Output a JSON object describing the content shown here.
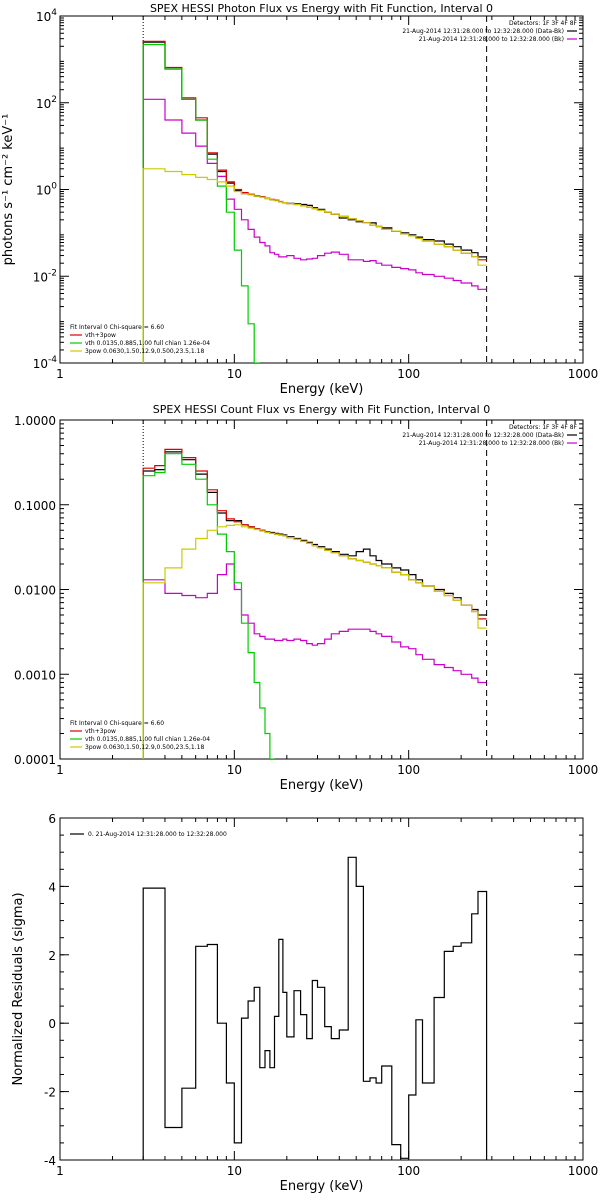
{
  "chart_data": [
    {
      "type": "line",
      "title": "SPEX HESSI Photon Flux vs Energy with Fit Function, Interval 0",
      "xlabel": "Energy (keV)",
      "ylabel": "photons s⁻¹ cm⁻² keV⁻¹",
      "xscale": "log",
      "yscale": "log",
      "xlim": [
        1,
        1000
      ],
      "ylim": [
        0.0001,
        10000
      ],
      "xticks": [
        1,
        10,
        100,
        1000
      ],
      "xticklabels": [
        "1",
        "10",
        "100",
        "1000"
      ],
      "yticks": [
        0.0001,
        0.01,
        1,
        100,
        10000
      ],
      "yticklabels": [
        {
          "base": "10",
          "exp": "-4"
        },
        {
          "base": "10",
          "exp": "-2"
        },
        {
          "base": "10",
          "exp": "0"
        },
        {
          "base": "10",
          "exp": "2"
        },
        {
          "base": "10",
          "exp": "4"
        }
      ],
      "vlines": [
        {
          "x": 3,
          "style": "dotted"
        },
        {
          "x": 280,
          "style": "dashed"
        }
      ],
      "legend_top_right": {
        "header": "Detectors: 1F 3F 4F 8F",
        "entries": [
          {
            "label": "21-Aug-2014 12:31:28.000 to 12:32:28.000 (Data-Bk)",
            "color": "#000000"
          },
          {
            "label": "21-Aug-2014 12:31:28.000 to 12:32:28.000 (Bk)",
            "color": "#cc00cc"
          }
        ]
      },
      "legend_bottom_left": {
        "header": "Fit Interval 0   Chi-square = 6.60",
        "entries": [
          {
            "label": "vth+3pow",
            "color": "#dd0000"
          },
          {
            "label": "vth 0.0135,0.885,1.00  full chian 1.26e-04",
            "color": "#00cc00"
          },
          {
            "label": "3pow 0.0630,1.50,12.9,0.500,23.5,1.18",
            "color": "#cccc00"
          }
        ]
      },
      "bin_edges": [
        3,
        3.5,
        4,
        5,
        6,
        7,
        8,
        9,
        10,
        11,
        12,
        13,
        14,
        15,
        16,
        17,
        18,
        19,
        20,
        22,
        24,
        26,
        28,
        30,
        33,
        36,
        40,
        45,
        50,
        55,
        60,
        65,
        70,
        80,
        90,
        100,
        110,
        120,
        140,
        160,
        180,
        200,
        230,
        250,
        280
      ],
      "series": [
        {
          "name": "Data-Bk",
          "color": "#000000",
          "values": [
            2500,
            2500,
            600,
            120,
            40,
            6.5,
            2.6,
            1.4,
            0.95,
            0.8,
            0.75,
            0.7,
            0.68,
            0.62,
            0.58,
            0.56,
            0.52,
            0.5,
            0.48,
            0.47,
            0.45,
            0.43,
            0.38,
            0.35,
            0.3,
            0.27,
            0.22,
            0.2,
            0.18,
            0.17,
            0.17,
            0.14,
            0.13,
            0.11,
            0.1,
            0.09,
            0.08,
            0.07,
            0.065,
            0.055,
            0.048,
            0.04,
            0.035,
            0.028
          ]
        },
        {
          "name": "Bk",
          "color": "#cc00cc",
          "values": [
            120,
            120,
            40,
            20,
            10,
            4,
            2,
            0.6,
            0.35,
            0.2,
            0.12,
            0.08,
            0.06,
            0.05,
            0.035,
            0.032,
            0.028,
            0.028,
            0.03,
            0.026,
            0.024,
            0.025,
            0.026,
            0.03,
            0.034,
            0.036,
            0.032,
            0.024,
            0.024,
            0.022,
            0.023,
            0.02,
            0.018,
            0.016,
            0.015,
            0.014,
            0.012,
            0.011,
            0.01,
            0.009,
            0.008,
            0.007,
            0.006,
            0.005
          ]
        },
        {
          "name": "vth+3pow",
          "color": "#dd0000",
          "values": [
            2600,
            2600,
            650,
            130,
            45,
            7,
            2.8,
            1.5,
            1.0,
            0.85,
            0.78,
            0.72,
            0.68,
            0.63,
            0.59,
            0.56,
            0.53,
            0.5,
            0.47,
            0.45,
            0.42,
            0.39,
            0.36,
            0.33,
            0.3,
            0.27,
            0.24,
            0.21,
            0.19,
            0.17,
            0.15,
            0.14,
            0.12,
            0.11,
            0.095,
            0.085,
            0.075,
            0.065,
            0.055,
            0.048,
            0.04,
            0.034,
            0.028,
            0.024
          ]
        },
        {
          "name": "vth",
          "color": "#00cc00",
          "values": [
            2200,
            2200,
            600,
            120,
            40,
            5,
            1.2,
            0.3,
            0.04,
            0.006,
            0.0008,
            0.0001
          ]
        },
        {
          "name": "3pow",
          "color": "#cccc00",
          "values": [
            3,
            3,
            2.6,
            2.2,
            1.9,
            1.7,
            1.5,
            1.2,
            0.9,
            0.8,
            0.75,
            0.7,
            0.66,
            0.62,
            0.58,
            0.55,
            0.52,
            0.5,
            0.47,
            0.45,
            0.42,
            0.39,
            0.36,
            0.33,
            0.3,
            0.27,
            0.24,
            0.21,
            0.19,
            0.17,
            0.15,
            0.14,
            0.12,
            0.11,
            0.095,
            0.085,
            0.075,
            0.065,
            0.055,
            0.048,
            0.04,
            0.034,
            0.028,
            0.018
          ]
        }
      ]
    },
    {
      "type": "line",
      "title": "SPEX HESSI Count Flux vs Energy with Fit Function, Interval 0",
      "xlabel": "Energy (keV)",
      "ylabel": "",
      "xscale": "log",
      "yscale": "log",
      "xlim": [
        1,
        1000
      ],
      "ylim": [
        0.0001,
        1
      ],
      "xticks": [
        1,
        10,
        100,
        1000
      ],
      "xticklabels": [
        "1",
        "10",
        "100",
        "1000"
      ],
      "yticks": [
        0.0001,
        0.001,
        0.01,
        0.1,
        1
      ],
      "yticklabels": [
        "0.0001",
        "0.0010",
        "0.0100",
        "0.1000",
        "1.0000"
      ],
      "vlines": [
        {
          "x": 3,
          "style": "dotted"
        },
        {
          "x": 280,
          "style": "dashed"
        }
      ],
      "legend_top_right": {
        "header": "Detectors: 1F 3F 4F 8F",
        "entries": [
          {
            "label": "21-Aug-2014 12:31:28.000 to 12:32:28.000 (Data-Bk)",
            "color": "#000000"
          },
          {
            "label": "21-Aug-2014 12:31:28.000 to 12:32:28.000 (Bk)",
            "color": "#cc00cc"
          }
        ]
      },
      "legend_bottom_left": {
        "header": "Fit Interval 0   Chi-square = 6.60",
        "entries": [
          {
            "label": "vth+3pow",
            "color": "#dd0000"
          },
          {
            "label": "vth 0.0135,0.885,1.00  full chian 1.26e-04",
            "color": "#00cc00"
          },
          {
            "label": "3pow 0.0630,1.50,12.9,0.500,23.5,1.18",
            "color": "#cccc00"
          }
        ]
      },
      "bin_edges": [
        3,
        3.5,
        4,
        5,
        6,
        7,
        8,
        9,
        10,
        11,
        12,
        13,
        14,
        15,
        16,
        17,
        18,
        19,
        20,
        22,
        24,
        26,
        28,
        30,
        33,
        36,
        40,
        45,
        50,
        55,
        60,
        65,
        70,
        80,
        90,
        100,
        110,
        120,
        140,
        160,
        180,
        200,
        230,
        250,
        280
      ],
      "series": [
        {
          "name": "Data-Bk",
          "color": "#000000",
          "values": [
            0.25,
            0.26,
            0.42,
            0.34,
            0.23,
            0.14,
            0.08,
            0.065,
            0.065,
            0.058,
            0.055,
            0.052,
            0.05,
            0.048,
            0.047,
            0.046,
            0.045,
            0.044,
            0.042,
            0.04,
            0.038,
            0.036,
            0.034,
            0.032,
            0.03,
            0.028,
            0.026,
            0.025,
            0.028,
            0.03,
            0.025,
            0.022,
            0.02,
            0.018,
            0.017,
            0.015,
            0.013,
            0.011,
            0.01,
            0.009,
            0.008,
            0.0065,
            0.0058,
            0.005
          ]
        },
        {
          "name": "Bk",
          "color": "#cc00cc",
          "values": [
            0.013,
            0.013,
            0.009,
            0.0085,
            0.008,
            0.009,
            0.015,
            0.02,
            0.01,
            0.005,
            0.004,
            0.003,
            0.0028,
            0.0026,
            0.0026,
            0.0025,
            0.0025,
            0.0026,
            0.0025,
            0.0026,
            0.0025,
            0.0023,
            0.0022,
            0.0023,
            0.0026,
            0.003,
            0.0032,
            0.0034,
            0.0034,
            0.0034,
            0.0032,
            0.003,
            0.0028,
            0.0024,
            0.0021,
            0.002,
            0.0017,
            0.0015,
            0.0013,
            0.0012,
            0.0011,
            0.001,
            0.0009,
            0.0008
          ]
        },
        {
          "name": "vth+3pow",
          "color": "#dd0000",
          "values": [
            0.27,
            0.29,
            0.45,
            0.36,
            0.25,
            0.15,
            0.085,
            0.068,
            0.063,
            0.058,
            0.055,
            0.052,
            0.05,
            0.048,
            0.046,
            0.045,
            0.044,
            0.043,
            0.041,
            0.039,
            0.037,
            0.035,
            0.033,
            0.031,
            0.029,
            0.027,
            0.025,
            0.023,
            0.022,
            0.021,
            0.02,
            0.019,
            0.018,
            0.016,
            0.015,
            0.013,
            0.012,
            0.011,
            0.0095,
            0.0085,
            0.0075,
            0.0065,
            0.0055,
            0.0045
          ]
        },
        {
          "name": "vth",
          "color": "#00cc00",
          "values": [
            0.22,
            0.24,
            0.4,
            0.3,
            0.2,
            0.1,
            0.045,
            0.028,
            0.012,
            0.004,
            0.0018,
            0.0008,
            0.0004,
            0.0002,
            0.0001
          ]
        },
        {
          "name": "3pow",
          "color": "#cccc00",
          "values": [
            0.012,
            0.012,
            0.018,
            0.03,
            0.04,
            0.05,
            0.055,
            0.057,
            0.058,
            0.055,
            0.053,
            0.051,
            0.049,
            0.047,
            0.046,
            0.045,
            0.044,
            0.043,
            0.041,
            0.039,
            0.037,
            0.035,
            0.033,
            0.031,
            0.029,
            0.027,
            0.025,
            0.023,
            0.022,
            0.021,
            0.02,
            0.019,
            0.018,
            0.016,
            0.015,
            0.013,
            0.012,
            0.011,
            0.0095,
            0.0085,
            0.0075,
            0.0065,
            0.0055,
            0.0035
          ]
        }
      ]
    },
    {
      "type": "line",
      "title": "",
      "xlabel": "Energy (keV)",
      "ylabel": "Normalized Residuals (sigma)",
      "xscale": "log",
      "yscale": "linear",
      "xlim": [
        1,
        1000
      ],
      "ylim": [
        -4,
        6
      ],
      "xticks": [
        1,
        10,
        100,
        1000
      ],
      "xticklabels": [
        "1",
        "10",
        "100",
        "1000"
      ],
      "yticks": [
        -4,
        -2,
        0,
        2,
        4,
        6
      ],
      "yticklabels": [
        "-4",
        "-2",
        "0",
        "2",
        "4",
        "6"
      ],
      "legend_top_left": {
        "entries": [
          {
            "label": "0. 21-Aug-2014 12:31:28.000 to 12:32:28.000",
            "color": "#000000"
          }
        ]
      },
      "bin_edges": [
        3,
        3.5,
        4,
        5,
        6,
        7,
        8,
        9,
        10,
        11,
        12,
        13,
        14,
        15,
        16,
        17,
        18,
        19,
        20,
        22,
        24,
        26,
        28,
        30,
        33,
        36,
        40,
        45,
        50,
        55,
        60,
        65,
        70,
        80,
        90,
        100,
        110,
        120,
        140,
        160,
        180,
        200,
        230,
        250,
        280
      ],
      "series": [
        {
          "name": "",
          "color": "#000000",
          "values": [
            3.95,
            3.95,
            -3.05,
            -1.9,
            2.25,
            2.3,
            0.0,
            -1.75,
            -3.5,
            0.15,
            0.65,
            1.05,
            -1.3,
            -0.8,
            -1.3,
            0.2,
            2.45,
            0.9,
            -0.4,
            0.95,
            0.25,
            -0.45,
            1.25,
            1.05,
            -0.1,
            -0.45,
            -0.2,
            4.85,
            4.0,
            -1.7,
            -1.6,
            -1.75,
            -1.25,
            -3.55,
            -3.95,
            -2.1,
            0.1,
            -1.75,
            0.75,
            2.1,
            2.25,
            2.35,
            3.2,
            3.85
          ]
        }
      ]
    }
  ]
}
